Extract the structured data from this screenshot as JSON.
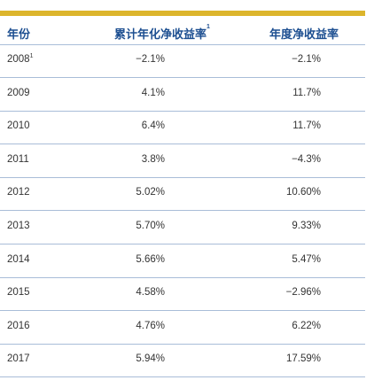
{
  "table": {
    "header": {
      "year": "年份",
      "cumulative": "累计年化净收益率",
      "cumulative_note": "1",
      "annual": "年度净收益率"
    },
    "rows": [
      {
        "year": "2008",
        "note": "1",
        "cumulative": "−2.1%",
        "annual": "−2.1%"
      },
      {
        "year": "2009",
        "cumulative": "4.1%",
        "annual": "11.7%"
      },
      {
        "year": "2010",
        "cumulative": "6.4%",
        "annual": "11.7%"
      },
      {
        "year": "2011",
        "cumulative": "3.8%",
        "annual": "−4.3%"
      },
      {
        "year": "2012",
        "cumulative": "5.02%",
        "annual": "10.60%"
      },
      {
        "year": "2013",
        "cumulative": "5.70%",
        "annual": "9.33%"
      },
      {
        "year": "2014",
        "cumulative": "5.66%",
        "annual": "5.47%"
      },
      {
        "year": "2015",
        "cumulative": "4.58%",
        "annual": "−2.96%"
      },
      {
        "year": "2016",
        "cumulative": "4.76%",
        "annual": "6.22%"
      },
      {
        "year": "2017",
        "cumulative": "5.94%",
        "annual": "17.59%"
      }
    ]
  }
}
